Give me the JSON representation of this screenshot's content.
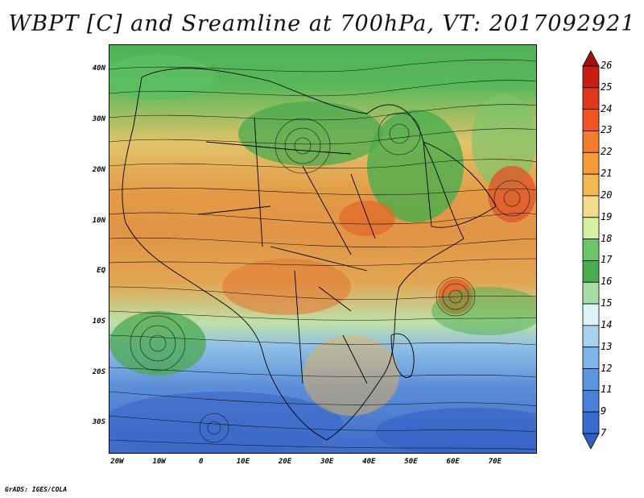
{
  "title": "WBPT [C] and Sreamline at 700hPa, VT: 2017092921",
  "credit": "GrADS: IGES/COLA",
  "map": {
    "lon_range": [
      -22,
      80
    ],
    "lat_range": [
      -36,
      45
    ],
    "lat_labels": [
      {
        "lat": 40,
        "label": "40N"
      },
      {
        "lat": 30,
        "label": "30N"
      },
      {
        "lat": 20,
        "label": "20N"
      },
      {
        "lat": 10,
        "label": "10N"
      },
      {
        "lat": 0,
        "label": "EQ"
      },
      {
        "lat": -10,
        "label": "10S"
      },
      {
        "lat": -20,
        "label": "20S"
      },
      {
        "lat": -30,
        "label": "30S"
      }
    ],
    "lon_labels": [
      {
        "lon": -20,
        "label": "20W"
      },
      {
        "lon": -10,
        "label": "10W"
      },
      {
        "lon": 0,
        "label": "0"
      },
      {
        "lon": 10,
        "label": "10E"
      },
      {
        "lon": 20,
        "label": "20E"
      },
      {
        "lon": 30,
        "label": "30E"
      },
      {
        "lon": 40,
        "label": "40E"
      },
      {
        "lon": 50,
        "label": "50E"
      },
      {
        "lon": 60,
        "label": "60E"
      },
      {
        "lon": 70,
        "label": "70E"
      }
    ]
  },
  "colorbar": {
    "levels": [
      "26",
      "25",
      "24",
      "23",
      "22",
      "21",
      "20",
      "19",
      "18",
      "17",
      "16",
      "15",
      "14",
      "13",
      "12",
      "11",
      "9",
      "7"
    ],
    "colors": [
      "#a50f0f",
      "#c81d12",
      "#e0361a",
      "#ee5522",
      "#f47a2e",
      "#f59a3a",
      "#f4b752",
      "#f3dc8e",
      "#d6f0a0",
      "#6cc46a",
      "#4aae4e",
      "#a8dda5",
      "#dff4f6",
      "#a9d2f0",
      "#7fb4ea",
      "#5b95e0",
      "#4a80d8",
      "#3a6ccf",
      "#2f5fc4"
    ]
  }
}
